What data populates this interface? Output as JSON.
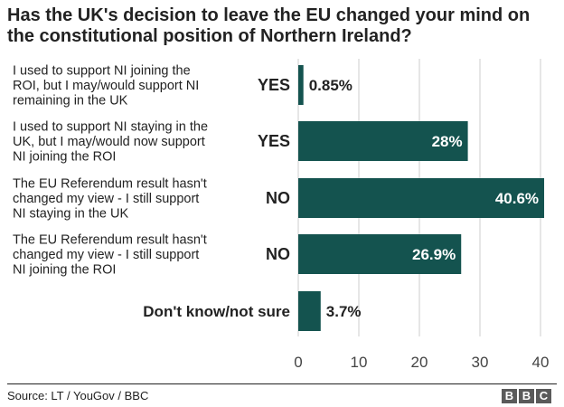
{
  "title_lines": [
    "Has the UK's decision to leave the EU changed your mind on",
    "the constitutional position of Northern Ireland?"
  ],
  "source": "Source: LT / YouGov / BBC",
  "logo": [
    "B",
    "B",
    "C"
  ],
  "colors": {
    "bar": "#14534f",
    "text": "#222222",
    "axis": "#999999",
    "inside_label": "#ffffff"
  },
  "chart_data": {
    "type": "bar",
    "orientation": "horizontal",
    "title": "Has the UK's decision to leave the EU changed your mind on the constitutional position of Northern Ireland?",
    "categories": [
      [
        "I used to support NI joining the",
        "ROI, but I may/would support NI",
        "remaining in the UK"
      ],
      [
        "I used to support NI staying in the",
        "UK, but I may/would now support",
        "NI joining the ROI"
      ],
      [
        "The EU Referendum result hasn't",
        "changed my view - I still support",
        "NI staying in the UK"
      ],
      [
        "The EU Referendum result hasn't",
        "changed my view - I still support",
        "NI joining the ROI"
      ],
      [
        "Don't know/not sure"
      ]
    ],
    "group_labels": [
      "YES",
      "YES",
      "NO",
      "NO",
      ""
    ],
    "values": [
      0.85,
      28,
      40.6,
      26.9,
      3.7
    ],
    "value_labels": [
      "0.85%",
      "28%",
      "40.6%",
      "26.9%",
      "3.7%"
    ],
    "xlim": [
      0,
      40
    ],
    "xticks": [
      0,
      10,
      20,
      30,
      40
    ],
    "xlabel": "",
    "ylabel": "",
    "grid": false,
    "legend": "none"
  }
}
